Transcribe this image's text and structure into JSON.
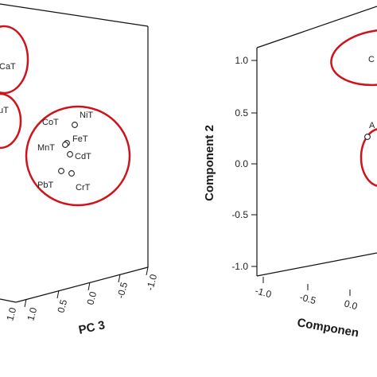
{
  "chart_data": [
    {
      "type": "scatter",
      "projection": "3d",
      "depth_axis": {
        "title": "PC 3",
        "ticks": [
          "1.0",
          "0.5",
          "0.0",
          "-0.5",
          "-1.0"
        ],
        "extra_tick_labels": [
          "1.0"
        ]
      },
      "points": [
        {
          "label": "CaT"
        },
        {
          "label": "uT"
        },
        {
          "label": "NiT"
        },
        {
          "label": "CoT"
        },
        {
          "label": "FeT"
        },
        {
          "label": "MnT"
        },
        {
          "label": "CdT"
        },
        {
          "label": "PbT"
        },
        {
          "label": "CrT"
        }
      ],
      "cluster_outline_color": "#d0121b"
    },
    {
      "type": "scatter",
      "projection": "3d",
      "y_axis": {
        "title": "Component 2",
        "ticks": [
          "1.0",
          "0.5",
          "0.0",
          "-0.5",
          "-1.0"
        ]
      },
      "x_axis": {
        "title": "Componen",
        "ticks": [
          "-1.0",
          "-0.5",
          "0.0"
        ]
      },
      "points": [
        {
          "label": "C"
        },
        {
          "label": "A"
        }
      ],
      "cluster_outline_color": "#d0121b"
    }
  ]
}
